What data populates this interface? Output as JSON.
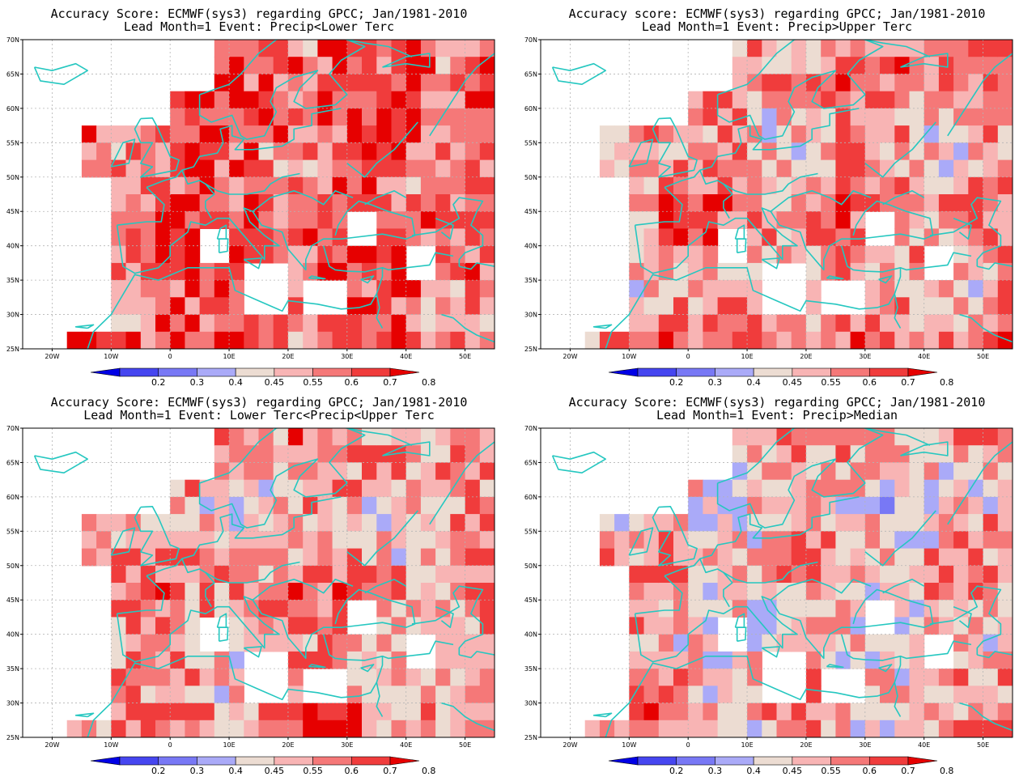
{
  "panels": [
    {
      "title_line1": "Accuracy Score: ECMWF(sys3) regarding GPCC; Jan/1981-2010",
      "title_line2": "Lead Month=1 Event: Precip<Lower Terc"
    },
    {
      "title_line1": "Accuracy score: ECMWF(sys3) regarding GPCC; Jan/1981-2010",
      "title_line2": "Lead Month=1 Event: Precip>Upper Terc"
    },
    {
      "title_line1": "Accuracy Score: ECMWF(sys3) regarding GPCC; Jan/1981-2010",
      "title_line2": "Lead Month=1 Event: Lower Terc<Precip<Upper Terc"
    },
    {
      "title_line1": "Accuracy Score: ECMWF(sys3) regarding GPCC; Jan/1981-2010",
      "title_line2": "Lead Month=1 Event: Precip>Median"
    }
  ],
  "map": {
    "lon_ticks": [
      "20W",
      "10W",
      "0",
      "10E",
      "20E",
      "30E",
      "40E",
      "50E"
    ],
    "lat_ticks": [
      "70N",
      "65N",
      "60N",
      "55N",
      "50N",
      "45N",
      "40N",
      "35N",
      "30N",
      "25N"
    ],
    "lon_values": [
      -20,
      -10,
      0,
      10,
      20,
      30,
      40,
      50
    ],
    "lat_values": [
      70,
      65,
      60,
      55,
      50,
      45,
      40,
      35,
      30,
      25
    ],
    "lon_range": [
      -25,
      55
    ],
    "lat_range": [
      25,
      70
    ]
  },
  "colorbar": {
    "labels": [
      "0.2",
      "0.3",
      "0.4",
      "0.45",
      "0.55",
      "0.6",
      "0.7",
      "0.8"
    ],
    "colors": [
      "#0000e6",
      "#4646f0",
      "#7878f5",
      "#aaaaf8",
      "#ecdcd2",
      "#f8b4b4",
      "#f57878",
      "#f03c3c",
      "#e60000"
    ]
  },
  "colors": {
    "coast": "#25c7c0",
    "grid": "#b4b4b4"
  }
}
